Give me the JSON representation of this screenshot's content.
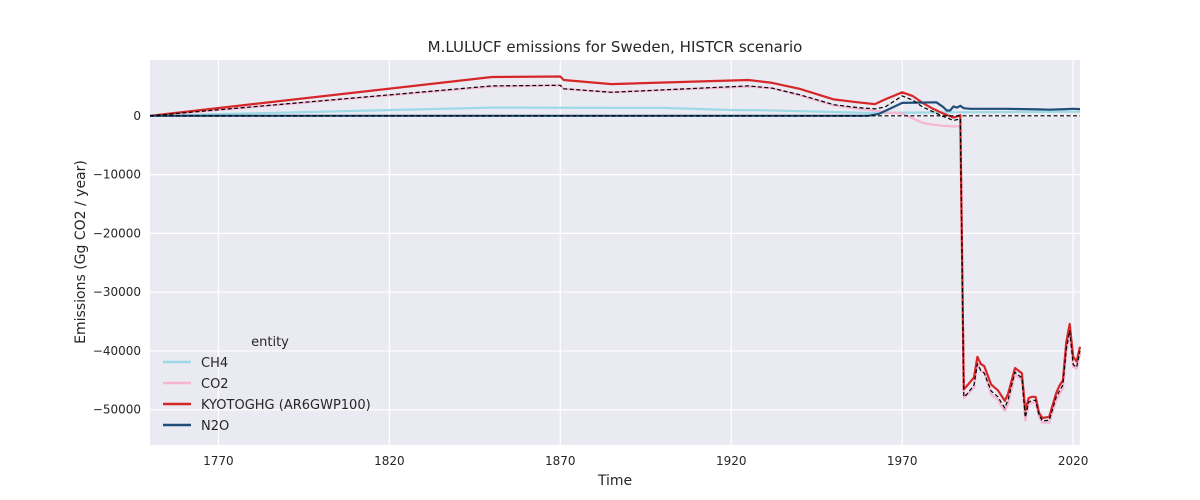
{
  "chart_data": {
    "type": "line",
    "title": "M.LULUCF emissions for Sweden, HISTCR scenario",
    "xlabel": "Time",
    "ylabel": "Emissions (Gg CO2 / year)",
    "xlim": [
      1750,
      2022
    ],
    "ylim": [
      -56000,
      9500
    ],
    "xticks": [
      1770,
      1820,
      1870,
      1920,
      1970,
      2020
    ],
    "yticks": [
      0,
      -10000,
      -20000,
      -30000,
      -40000,
      -50000
    ],
    "grid": true,
    "legend": {
      "title": "entity",
      "placement": "lower-left"
    },
    "series": [
      {
        "name": "CH4",
        "color": "#9ed9e6",
        "style": "solid",
        "x": [
          1750,
          1850,
          1900,
          1920,
          1930,
          1960,
          1985,
          2022
        ],
        "y": [
          0,
          1400,
          1350,
          1000,
          950,
          500,
          600,
          700
        ]
      },
      {
        "name": "CO2",
        "color": "#f6b6d2",
        "style": "solid",
        "x": [
          1750,
          1850,
          1870,
          1871,
          1885,
          1925,
          1932,
          1940,
          1950,
          1957,
          1962,
          1965,
          1970,
          1973,
          1976,
          1979,
          1982,
          1985,
          1987,
          1988,
          1989,
          1991,
          1992,
          1993,
          1994,
          1996,
          1998,
          1999,
          2000,
          2001,
          2003,
          2005,
          2006,
          2007,
          2008,
          2009,
          2010,
          2011,
          2013,
          2015,
          2016,
          2017,
          2018,
          2019,
          2020,
          2021,
          2022
        ],
        "y": [
          0,
          5000,
          5200,
          4600,
          4000,
          5000,
          4700,
          3500,
          1800,
          1200,
          900,
          600,
          400,
          -400,
          -1200,
          -1500,
          -1700,
          -1800,
          -1750,
          -48000,
          -47500,
          -46200,
          -42000,
          -43500,
          -43600,
          -47400,
          -48300,
          -49400,
          -50200,
          -49000,
          -44000,
          -45000,
          -51800,
          -49000,
          -48800,
          -48800,
          -51200,
          -52200,
          -52200,
          -48500,
          -47400,
          -46300,
          -40200,
          -37000,
          -42700,
          -43000,
          -40400
        ]
      },
      {
        "name": "KYOTOGHG (AR6GWP100)",
        "color": "#d62728",
        "style": "solid",
        "x": [
          1750,
          1850,
          1870,
          1871,
          1885,
          1925,
          1932,
          1940,
          1950,
          1957,
          1962,
          1965,
          1970,
          1973,
          1976,
          1979,
          1982,
          1985,
          1987,
          1988,
          1989,
          1991,
          1992,
          1993,
          1994,
          1996,
          1998,
          1999,
          2000,
          2001,
          2003,
          2005,
          2006,
          2007,
          2008,
          2009,
          2010,
          2011,
          2013,
          2015,
          2016,
          2017,
          2018,
          2019,
          2020,
          2021,
          2022
        ],
        "y": [
          0,
          6600,
          6700,
          6100,
          5400,
          6100,
          5600,
          4600,
          2800,
          2300,
          2000,
          2800,
          4000,
          3400,
          2200,
          1200,
          400,
          -300,
          100,
          -46500,
          -45900,
          -44500,
          -41000,
          -42200,
          -42600,
          -45700,
          -46700,
          -47600,
          -48500,
          -47200,
          -42900,
          -43800,
          -50100,
          -48000,
          -47800,
          -47800,
          -50500,
          -51400,
          -51200,
          -47200,
          -45900,
          -45000,
          -38500,
          -35400,
          -41000,
          -41800,
          -39300
        ]
      },
      {
        "name": "N2O",
        "color": "#1f4e79",
        "style": "solid",
        "x": [
          1750,
          1960,
          1963,
          1966,
          1970,
          1980,
          1982,
          1983,
          1984,
          1985,
          1986,
          1987,
          1988,
          1990,
          2000,
          2010,
          2013,
          2018,
          2020,
          2022
        ],
        "y": [
          0,
          0,
          300,
          1100,
          2200,
          2300,
          1500,
          900,
          900,
          1600,
          1400,
          1700,
          1300,
          1200,
          1200,
          1100,
          1050,
          1150,
          1200,
          1150
        ]
      },
      {
        "name": "",
        "color": "#000000",
        "style": "dashed",
        "x": [
          1750,
          1850,
          1870,
          1871,
          1885,
          1925,
          1932,
          1940,
          1950,
          1957,
          1962,
          1965,
          1970,
          1973,
          1976,
          1979,
          1982,
          1985,
          1987,
          1988,
          1989,
          1991,
          1992,
          1993,
          1994,
          1996,
          1998,
          1999,
          2000,
          2001,
          2003,
          2005,
          2006,
          2007,
          2008,
          2009,
          2010,
          2011,
          2013,
          2015,
          2016,
          2017,
          2018,
          2019,
          2020,
          2021,
          2022
        ],
        "y": [
          0,
          5100,
          5200,
          4600,
          4000,
          5100,
          4700,
          3600,
          1900,
          1400,
          1200,
          1500,
          3400,
          2700,
          1500,
          700,
          -100,
          -800,
          -500,
          -47800,
          -47300,
          -45800,
          -42200,
          -43300,
          -43800,
          -46800,
          -47800,
          -48800,
          -49700,
          -48200,
          -43600,
          -44600,
          -51300,
          -48700,
          -48400,
          -48400,
          -50900,
          -51900,
          -51800,
          -47900,
          -46800,
          -45800,
          -39700,
          -36600,
          -42300,
          -42800,
          -40000
        ]
      },
      {
        "name": "",
        "color": "#000000",
        "style": "dashed",
        "x": [
          1750,
          2022
        ],
        "y": [
          0,
          0
        ]
      }
    ]
  }
}
